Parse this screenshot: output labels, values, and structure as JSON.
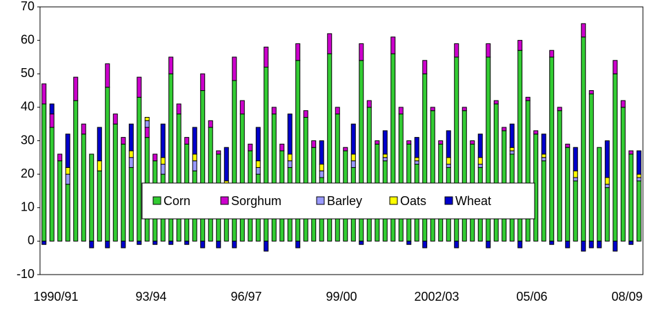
{
  "chart_data": {
    "type": "stacked-bar",
    "categories": [
      "1990/91",
      null,
      null,
      null,
      null,
      null,
      null,
      null,
      null,
      null,
      null,
      null,
      "93/94",
      null,
      null,
      null,
      null,
      null,
      null,
      null,
      null,
      null,
      null,
      null,
      "96/97",
      null,
      null,
      null,
      null,
      null,
      null,
      null,
      null,
      null,
      null,
      null,
      "99/00",
      null,
      null,
      null,
      null,
      null,
      null,
      null,
      null,
      null,
      null,
      null,
      "2002/03",
      null,
      null,
      null,
      null,
      null,
      null,
      null,
      null,
      null,
      null,
      null,
      "05/06",
      null,
      null,
      null,
      null,
      null,
      null,
      null,
      null,
      null,
      null,
      null,
      "08/09",
      null,
      null,
      null
    ],
    "series": [
      {
        "name": "Corn",
        "color": "#33cc33",
        "values": [
          41,
          34,
          24,
          17,
          42,
          32,
          26,
          21,
          46,
          35,
          29,
          22,
          43,
          31,
          24,
          20,
          50,
          38,
          29,
          21,
          45,
          34,
          26,
          16,
          48,
          38,
          27,
          20,
          52,
          38,
          27,
          22,
          54,
          37,
          28,
          19,
          56,
          38,
          27,
          22,
          54,
          40,
          29,
          24,
          56,
          38,
          29,
          23,
          50,
          39,
          29,
          22,
          55,
          39,
          29,
          22,
          55,
          41,
          33,
          26,
          57,
          42,
          32,
          24,
          55,
          39,
          28,
          18,
          61,
          44,
          28,
          16,
          50,
          40,
          26,
          18
        ]
      },
      {
        "name": "Sorghum",
        "color": "#cc00cc",
        "values": [
          6,
          4,
          2,
          0,
          7,
          3,
          0,
          0,
          7,
          3,
          2,
          0,
          6,
          3,
          2,
          0,
          5,
          3,
          2,
          0,
          5,
          2,
          1,
          0,
          7,
          4,
          2,
          0,
          6,
          2,
          2,
          0,
          5,
          2,
          2,
          0,
          6,
          2,
          1,
          0,
          5,
          2,
          1,
          0,
          5,
          2,
          1,
          0,
          4,
          1,
          1,
          0,
          4,
          1,
          1,
          0,
          4,
          1,
          1,
          0,
          3,
          1,
          1,
          0,
          2,
          1,
          1,
          0,
          4,
          1,
          0,
          0,
          4,
          2,
          1,
          0
        ]
      },
      {
        "name": "Barley",
        "color": "#9999ff",
        "values": [
          0,
          0,
          0,
          3,
          0,
          0,
          0,
          0,
          0,
          0,
          0,
          3,
          0,
          2,
          0,
          3,
          0,
          0,
          0,
          3,
          0,
          0,
          0,
          1,
          0,
          0,
          0,
          2,
          0,
          0,
          0,
          2,
          0,
          0,
          0,
          2,
          0,
          0,
          0,
          2,
          0,
          0,
          0,
          1,
          0,
          0,
          0,
          1,
          0,
          0,
          0,
          1,
          0,
          0,
          0,
          1,
          0,
          0,
          0,
          1,
          0,
          0,
          0,
          1,
          0,
          0,
          0,
          1,
          0,
          0,
          0,
          1,
          0,
          0,
          0,
          1
        ]
      },
      {
        "name": "Oats",
        "color": "#ffff00",
        "values": [
          0,
          0,
          0,
          2,
          0,
          0,
          0,
          3,
          0,
          0,
          0,
          2,
          0,
          1,
          0,
          2,
          0,
          0,
          0,
          2,
          0,
          0,
          0,
          1,
          0,
          0,
          0,
          2,
          0,
          0,
          0,
          2,
          0,
          0,
          0,
          2,
          0,
          0,
          0,
          2,
          0,
          0,
          0,
          1,
          0,
          0,
          0,
          1,
          0,
          0,
          0,
          2,
          0,
          0,
          0,
          2,
          0,
          0,
          0,
          1,
          0,
          0,
          0,
          1,
          0,
          0,
          0,
          2,
          0,
          0,
          0,
          2,
          0,
          0,
          0,
          1
        ]
      },
      {
        "name": "Wheat",
        "color": "#0000cc",
        "values": [
          -1,
          3,
          0,
          10,
          0,
          0,
          -2,
          10,
          -2,
          0,
          -2,
          8,
          -1,
          0,
          -1,
          10,
          -1,
          0,
          -1,
          8,
          -2,
          0,
          -2,
          10,
          -2,
          0,
          0,
          10,
          -3,
          0,
          0,
          12,
          -2,
          0,
          0,
          7,
          0,
          0,
          0,
          9,
          -1,
          0,
          0,
          7,
          0,
          0,
          -1,
          6,
          -2,
          0,
          0,
          8,
          -2,
          0,
          0,
          7,
          -2,
          0,
          0,
          7,
          -2,
          0,
          0,
          6,
          -1,
          0,
          -2,
          7,
          -3,
          -2,
          -2,
          11,
          -3,
          0,
          -1,
          7
        ]
      }
    ],
    "ylim": [
      -10,
      70
    ],
    "yticks": [
      -10,
      0,
      10,
      20,
      30,
      40,
      50,
      60,
      70
    ],
    "legend": "lower center"
  }
}
